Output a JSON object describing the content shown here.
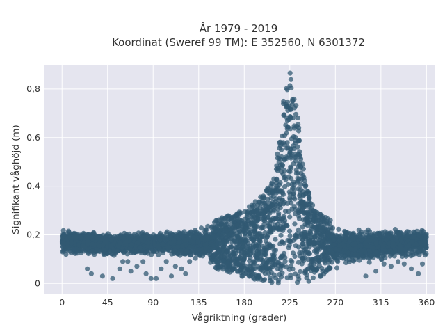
{
  "chart_data": {
    "type": "scatter",
    "title_lines": [
      "År 1979 - 2019",
      "Koordinat (Sweref 99 TM): E 352560, N 6301372"
    ],
    "xlabel": "Vågriktning (grader)",
    "ylabel": "Signifikant våghöjd (m)",
    "xlim": [
      -18,
      368
    ],
    "ylim": [
      -0.045,
      0.9
    ],
    "xticks": [
      0,
      45,
      90,
      135,
      180,
      225,
      270,
      315,
      360
    ],
    "xtick_labels": [
      "0",
      "45",
      "90",
      "135",
      "180",
      "225",
      "270",
      "315",
      "360"
    ],
    "yticks": [
      0,
      0.2,
      0.4,
      0.6,
      0.8
    ],
    "ytick_labels": [
      "0",
      "0,2",
      "0,4",
      "0,6",
      "0,8"
    ],
    "grid": true,
    "legend": "none",
    "colors": {
      "points": "#325a73",
      "plot_bg": "#e5e5ef",
      "grid": "#ffffff"
    },
    "point_cloud_envelope": {
      "x": [
        0,
        45,
        90,
        135,
        180,
        200,
        210,
        215,
        220,
        225,
        230,
        235,
        240,
        250,
        270,
        315,
        360
      ],
      "upper_y": [
        0.23,
        0.21,
        0.22,
        0.24,
        0.3,
        0.37,
        0.45,
        0.6,
        0.8,
        0.87,
        0.8,
        0.6,
        0.42,
        0.3,
        0.25,
        0.23,
        0.23
      ],
      "lower_y": [
        0.11,
        0.11,
        0.11,
        0.08,
        0.02,
        0.01,
        0.0,
        0.0,
        0.0,
        0.0,
        0.0,
        0.0,
        0.0,
        0.02,
        0.04,
        0.09,
        0.11
      ]
    },
    "outliers": [
      {
        "x": 25,
        "y": 0.06
      },
      {
        "x": 29,
        "y": 0.04
      },
      {
        "x": 40,
        "y": 0.03
      },
      {
        "x": 50,
        "y": 0.02
      },
      {
        "x": 57,
        "y": 0.06
      },
      {
        "x": 60,
        "y": 0.09
      },
      {
        "x": 65,
        "y": 0.09
      },
      {
        "x": 68,
        "y": 0.05
      },
      {
        "x": 74,
        "y": 0.07
      },
      {
        "x": 80,
        "y": 0.09
      },
      {
        "x": 83,
        "y": 0.04
      },
      {
        "x": 88,
        "y": 0.02
      },
      {
        "x": 93,
        "y": 0.02
      },
      {
        "x": 98,
        "y": 0.06
      },
      {
        "x": 103,
        "y": 0.09
      },
      {
        "x": 108,
        "y": 0.03
      },
      {
        "x": 112,
        "y": 0.07
      },
      {
        "x": 118,
        "y": 0.06
      },
      {
        "x": 122,
        "y": 0.04
      },
      {
        "x": 126,
        "y": 0.09
      },
      {
        "x": 300,
        "y": 0.03
      },
      {
        "x": 310,
        "y": 0.05
      },
      {
        "x": 318,
        "y": 0.08
      },
      {
        "x": 325,
        "y": 0.07
      },
      {
        "x": 332,
        "y": 0.09
      },
      {
        "x": 338,
        "y": 0.08
      },
      {
        "x": 345,
        "y": 0.06
      },
      {
        "x": 352,
        "y": 0.04
      },
      {
        "x": 356,
        "y": 0.08
      },
      {
        "x": 14,
        "y": 0.2
      },
      {
        "x": 7,
        "y": 0.21
      }
    ]
  }
}
